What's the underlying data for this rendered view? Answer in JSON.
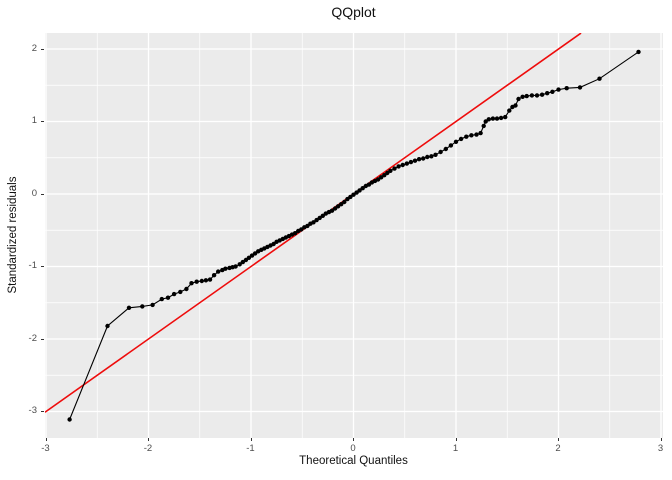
{
  "title": "QQplot",
  "axes": {
    "x_label": "Theoretical Quantiles",
    "y_label": "Standardized residuals",
    "x_ticks": [
      -3,
      -2,
      -1,
      0,
      1,
      2,
      3
    ],
    "y_ticks": [
      -3,
      -2,
      -1,
      0,
      1,
      2
    ],
    "x_minor": [
      -2.5,
      -1.5,
      -0.5,
      0.5,
      1.5,
      2.5
    ],
    "y_minor": [
      -2.5,
      -1.5,
      -0.5,
      0.5,
      1.5
    ]
  },
  "colors": {
    "page_bg": "#FFFFFF",
    "panel_bg": "#EBEBEB",
    "grid": "#FFFFFF",
    "point": "#000000",
    "ref_line": "#EE0C0C",
    "tick_label": "#4D4D4D",
    "text": "#111111"
  },
  "chart_data": {
    "type": "scatter",
    "title": "QQplot",
    "xlabel": "Theoretical Quantiles",
    "ylabel": "Standardized residuals",
    "xlim": [
      -3.02,
      3.08
    ],
    "ylim": [
      -3.37,
      2.22
    ],
    "grid": "major+minor white on gray panel (ggplot style)",
    "legend": "none",
    "reference_line": {
      "type": "abline",
      "slope": 1,
      "intercept": 0,
      "color": "red",
      "clip_segment": [
        [
          -3.01,
          -3.01
        ],
        [
          2.22,
          2.22
        ]
      ]
    },
    "series": [
      {
        "name": "standardized residuals vs theoretical quantiles",
        "marker": "filled point + connecting line",
        "points": [
          [
            -2.77,
            -3.11
          ],
          [
            -2.4,
            -1.82
          ],
          [
            -2.19,
            -1.57
          ],
          [
            -2.06,
            -1.55
          ],
          [
            -1.96,
            -1.53
          ],
          [
            -1.87,
            -1.45
          ],
          [
            -1.81,
            -1.43
          ],
          [
            -1.75,
            -1.38
          ],
          [
            -1.69,
            -1.35
          ],
          [
            -1.63,
            -1.31
          ],
          [
            -1.58,
            -1.23
          ],
          [
            -1.53,
            -1.21
          ],
          [
            -1.48,
            -1.2
          ],
          [
            -1.44,
            -1.19
          ],
          [
            -1.4,
            -1.18
          ],
          [
            -1.36,
            -1.12
          ],
          [
            -1.32,
            -1.07
          ],
          [
            -1.28,
            -1.05
          ],
          [
            -1.25,
            -1.03
          ],
          [
            -1.21,
            -1.02
          ],
          [
            -1.18,
            -1.01
          ],
          [
            -1.15,
            -1.0
          ],
          [
            -1.11,
            -0.97
          ],
          [
            -1.08,
            -0.94
          ],
          [
            -1.05,
            -0.91
          ],
          [
            -1.02,
            -0.88
          ],
          [
            -0.99,
            -0.85
          ],
          [
            -0.96,
            -0.82
          ],
          [
            -0.93,
            -0.79
          ],
          [
            -0.9,
            -0.77
          ],
          [
            -0.87,
            -0.75
          ],
          [
            -0.84,
            -0.73
          ],
          [
            -0.81,
            -0.71
          ],
          [
            -0.78,
            -0.69
          ],
          [
            -0.75,
            -0.66
          ],
          [
            -0.72,
            -0.64
          ],
          [
            -0.69,
            -0.62
          ],
          [
            -0.66,
            -0.6
          ],
          [
            -0.63,
            -0.58
          ],
          [
            -0.6,
            -0.56
          ],
          [
            -0.57,
            -0.54
          ],
          [
            -0.54,
            -0.51
          ],
          [
            -0.51,
            -0.49
          ],
          [
            -0.48,
            -0.46
          ],
          [
            -0.45,
            -0.44
          ],
          [
            -0.42,
            -0.41
          ],
          [
            -0.39,
            -0.39
          ],
          [
            -0.36,
            -0.36
          ],
          [
            -0.33,
            -0.33
          ],
          [
            -0.3,
            -0.3
          ],
          [
            -0.27,
            -0.27
          ],
          [
            -0.24,
            -0.25
          ],
          [
            -0.21,
            -0.23
          ],
          [
            -0.18,
            -0.2
          ],
          [
            -0.15,
            -0.17
          ],
          [
            -0.12,
            -0.14
          ],
          [
            -0.09,
            -0.11
          ],
          [
            -0.06,
            -0.07
          ],
          [
            -0.03,
            -0.04
          ],
          [
            0.0,
            -0.01
          ],
          [
            0.03,
            0.02
          ],
          [
            0.06,
            0.05
          ],
          [
            0.09,
            0.08
          ],
          [
            0.12,
            0.11
          ],
          [
            0.15,
            0.13
          ],
          [
            0.18,
            0.16
          ],
          [
            0.21,
            0.18
          ],
          [
            0.24,
            0.2
          ],
          [
            0.27,
            0.23
          ],
          [
            0.3,
            0.26
          ],
          [
            0.33,
            0.29
          ],
          [
            0.36,
            0.32
          ],
          [
            0.4,
            0.35
          ],
          [
            0.44,
            0.38
          ],
          [
            0.48,
            0.4
          ],
          [
            0.52,
            0.42
          ],
          [
            0.56,
            0.44
          ],
          [
            0.6,
            0.46
          ],
          [
            0.64,
            0.48
          ],
          [
            0.68,
            0.49
          ],
          [
            0.72,
            0.51
          ],
          [
            0.76,
            0.52
          ],
          [
            0.8,
            0.54
          ],
          [
            0.85,
            0.58
          ],
          [
            0.9,
            0.62
          ],
          [
            0.95,
            0.67
          ],
          [
            1.0,
            0.72
          ],
          [
            1.05,
            0.76
          ],
          [
            1.1,
            0.79
          ],
          [
            1.15,
            0.81
          ],
          [
            1.2,
            0.82
          ],
          [
            1.24,
            0.84
          ],
          [
            1.27,
            0.94
          ],
          [
            1.29,
            1.0
          ],
          [
            1.32,
            1.03
          ],
          [
            1.36,
            1.04
          ],
          [
            1.4,
            1.04
          ],
          [
            1.44,
            1.05
          ],
          [
            1.48,
            1.06
          ],
          [
            1.52,
            1.15
          ],
          [
            1.55,
            1.2
          ],
          [
            1.58,
            1.22
          ],
          [
            1.61,
            1.31
          ],
          [
            1.65,
            1.34
          ],
          [
            1.69,
            1.35
          ],
          [
            1.74,
            1.36
          ],
          [
            1.79,
            1.36
          ],
          [
            1.84,
            1.37
          ],
          [
            1.89,
            1.39
          ],
          [
            1.94,
            1.41
          ],
          [
            2.0,
            1.44
          ],
          [
            2.08,
            1.46
          ],
          [
            2.21,
            1.47
          ],
          [
            2.4,
            1.59
          ],
          [
            2.78,
            1.96
          ]
        ]
      }
    ]
  }
}
